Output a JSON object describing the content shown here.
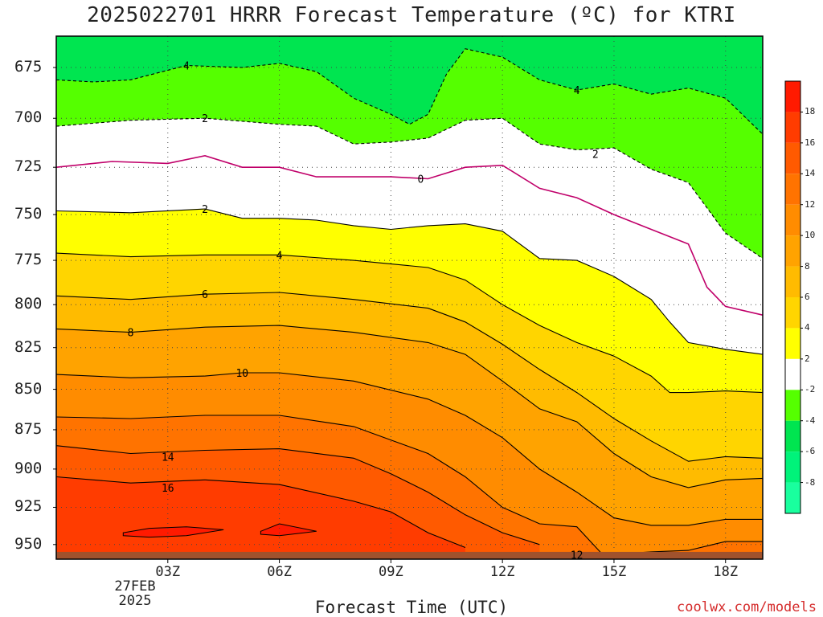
{
  "header": {
    "title": "2025022701 HRRR Forecast Temperature (ºC) for KTRI"
  },
  "footer": {
    "credit": "coolwx.com/models"
  },
  "chart_data": {
    "type": "contour",
    "title": "2025022701 HRRR Forecast Temperature (ºC) for KTRI",
    "xlabel": "Forecast Time (UTC)",
    "ylabel": "",
    "y_scale": "log",
    "y_inverted": true,
    "x_ticks": [
      "03Z",
      "06Z",
      "09Z",
      "12Z",
      "15Z",
      "18Z"
    ],
    "x_tick_hours": [
      3,
      6,
      9,
      12,
      15,
      18
    ],
    "x_date_label": [
      "27FEB",
      "2025"
    ],
    "xlim": [
      0,
      19
    ],
    "y_ticks": [
      675,
      700,
      725,
      750,
      775,
      800,
      825,
      850,
      875,
      900,
      925,
      950
    ],
    "ylim": [
      960,
      660
    ],
    "surface_pressure_hPa": 955,
    "colorbar": {
      "labels": [
        18,
        16,
        14,
        12,
        10,
        8,
        6,
        4,
        2,
        -2,
        -4,
        -6,
        -8
      ],
      "bands": [
        {
          "lo": 18,
          "hi": 20,
          "color": "#ff1a00"
        },
        {
          "lo": 16,
          "hi": 18,
          "color": "#ff3c00"
        },
        {
          "lo": 14,
          "hi": 16,
          "color": "#ff5a00"
        },
        {
          "lo": 12,
          "hi": 14,
          "color": "#ff7300"
        },
        {
          "lo": 10,
          "hi": 12,
          "color": "#ff8c00"
        },
        {
          "lo": 8,
          "hi": 10,
          "color": "#ffa300"
        },
        {
          "lo": 6,
          "hi": 8,
          "color": "#ffbb00"
        },
        {
          "lo": 4,
          "hi": 6,
          "color": "#ffd500"
        },
        {
          "lo": 2,
          "hi": 4,
          "color": "#ffff00"
        },
        {
          "lo": -2,
          "hi": 2,
          "color": "#ffffff"
        },
        {
          "lo": -4,
          "hi": -2,
          "color": "#55ff00"
        },
        {
          "lo": -6,
          "hi": -4,
          "color": "#00e550"
        },
        {
          "lo": -8,
          "hi": -6,
          "color": "#00f37a"
        },
        {
          "lo": -10,
          "hi": -8,
          "color": "#19ff9e"
        }
      ]
    },
    "contour_lines": [
      {
        "level": -4,
        "style": "dashed",
        "label": "4",
        "label_at": [
          [
            3.5,
            674
          ],
          [
            14,
            686
          ]
        ],
        "pts": [
          [
            0,
            681
          ],
          [
            1,
            682
          ],
          [
            2,
            681
          ],
          [
            3.5,
            674
          ],
          [
            5,
            675
          ],
          [
            6,
            673
          ],
          [
            7,
            677
          ],
          [
            8,
            690
          ],
          [
            9,
            698
          ],
          [
            9.5,
            703
          ],
          [
            10,
            698
          ],
          [
            10.5,
            678
          ],
          [
            11,
            666
          ],
          [
            12,
            670
          ],
          [
            13,
            681
          ],
          [
            14,
            686
          ],
          [
            15,
            683
          ],
          [
            16,
            688
          ],
          [
            17,
            685
          ],
          [
            18,
            690
          ],
          [
            19,
            708
          ]
        ]
      },
      {
        "level": -2,
        "style": "dashed",
        "label": "2",
        "label_at": [
          [
            4,
            700
          ],
          [
            14.5,
            718
          ]
        ],
        "pts": [
          [
            0,
            704
          ],
          [
            2,
            701
          ],
          [
            4,
            700
          ],
          [
            6,
            703
          ],
          [
            7,
            704
          ],
          [
            8,
            713
          ],
          [
            9,
            712
          ],
          [
            10,
            710
          ],
          [
            11,
            701
          ],
          [
            12,
            700
          ],
          [
            13,
            713
          ],
          [
            14,
            716
          ],
          [
            15,
            715
          ],
          [
            16,
            726
          ],
          [
            17,
            733
          ],
          [
            18,
            760
          ],
          [
            19,
            774
          ]
        ]
      },
      {
        "level": 0,
        "style": "solid",
        "color": "#c0006a",
        "label": "0",
        "label_at": [
          [
            9.8,
            731
          ]
        ],
        "pts": [
          [
            0,
            725
          ],
          [
            1.5,
            722
          ],
          [
            3,
            723
          ],
          [
            4,
            719
          ],
          [
            5,
            725
          ],
          [
            6,
            725
          ],
          [
            7,
            730
          ],
          [
            8,
            730
          ],
          [
            9,
            730
          ],
          [
            10,
            731
          ],
          [
            11,
            725
          ],
          [
            12,
            724
          ],
          [
            13,
            736
          ],
          [
            14,
            741
          ],
          [
            15,
            750
          ],
          [
            16,
            758
          ],
          [
            17,
            766
          ],
          [
            17.5,
            790
          ],
          [
            18,
            801
          ],
          [
            19,
            806
          ]
        ]
      },
      {
        "level": 2,
        "style": "solid",
        "color": "#000000",
        "label": "2",
        "label_at": [
          [
            4,
            747
          ]
        ],
        "pts": [
          [
            0,
            748
          ],
          [
            2,
            749
          ],
          [
            4,
            747
          ],
          [
            5,
            752
          ],
          [
            6,
            752
          ],
          [
            7,
            753
          ],
          [
            8,
            756
          ],
          [
            9,
            758
          ],
          [
            10,
            756
          ],
          [
            11,
            755
          ],
          [
            12,
            759
          ],
          [
            13,
            774
          ],
          [
            14,
            775
          ],
          [
            15,
            784
          ],
          [
            16,
            797
          ],
          [
            16.5,
            810
          ],
          [
            17,
            822
          ],
          [
            18,
            826
          ],
          [
            19,
            829
          ]
        ]
      },
      {
        "level": 4,
        "style": "solid",
        "color": "#000000",
        "label": "4",
        "label_at": [
          [
            6,
            772
          ]
        ],
        "pts": [
          [
            0,
            771
          ],
          [
            2,
            773
          ],
          [
            4,
            772
          ],
          [
            6,
            772
          ],
          [
            8,
            775
          ],
          [
            10,
            779
          ],
          [
            11,
            786
          ],
          [
            12,
            800
          ],
          [
            13,
            812
          ],
          [
            14,
            822
          ],
          [
            15,
            830
          ],
          [
            16,
            842
          ],
          [
            16.5,
            852
          ],
          [
            17,
            852
          ],
          [
            18,
            851
          ],
          [
            19,
            852
          ]
        ]
      },
      {
        "level": 6,
        "style": "solid",
        "color": "#000000",
        "label": "6",
        "label_at": [
          [
            4,
            794
          ]
        ],
        "pts": [
          [
            0,
            795
          ],
          [
            2,
            797
          ],
          [
            4,
            794
          ],
          [
            6,
            793
          ],
          [
            8,
            797
          ],
          [
            10,
            802
          ],
          [
            11,
            810
          ],
          [
            12,
            823
          ],
          [
            13,
            838
          ],
          [
            14,
            852
          ],
          [
            15,
            868
          ],
          [
            16,
            882
          ],
          [
            17,
            895
          ],
          [
            18,
            892
          ],
          [
            19,
            893
          ]
        ]
      },
      {
        "level": 8,
        "style": "solid",
        "color": "#000000",
        "label": "8",
        "label_at": [
          [
            2,
            816
          ]
        ],
        "pts": [
          [
            0,
            814
          ],
          [
            2,
            816
          ],
          [
            4,
            813
          ],
          [
            6,
            812
          ],
          [
            8,
            816
          ],
          [
            10,
            822
          ],
          [
            11,
            829
          ],
          [
            12,
            845
          ],
          [
            13,
            862
          ],
          [
            14,
            870
          ],
          [
            15,
            890
          ],
          [
            16,
            905
          ],
          [
            17,
            912
          ],
          [
            18,
            907
          ],
          [
            19,
            906
          ]
        ]
      },
      {
        "level": 10,
        "style": "solid",
        "color": "#000000",
        "label": "10",
        "label_at": [
          [
            5,
            840
          ]
        ],
        "pts": [
          [
            0,
            841
          ],
          [
            2,
            843
          ],
          [
            4,
            842
          ],
          [
            5,
            840
          ],
          [
            6,
            840
          ],
          [
            8,
            845
          ],
          [
            10,
            856
          ],
          [
            11,
            866
          ],
          [
            12,
            880
          ],
          [
            13,
            900
          ],
          [
            14,
            915
          ],
          [
            15,
            932
          ],
          [
            16,
            937
          ],
          [
            17,
            937
          ],
          [
            18,
            933
          ],
          [
            19,
            933
          ]
        ]
      },
      {
        "level": 12,
        "style": "solid",
        "color": "#000000",
        "label": "12",
        "label_at": [
          [
            14,
            957
          ]
        ],
        "pts": [
          [
            0,
            867
          ],
          [
            2,
            868
          ],
          [
            4,
            866
          ],
          [
            6,
            866
          ],
          [
            8,
            873
          ],
          [
            10,
            890
          ],
          [
            11,
            905
          ],
          [
            12,
            925
          ],
          [
            13,
            936
          ],
          [
            14,
            938
          ],
          [
            14.7,
            957
          ],
          [
            16,
            955
          ],
          [
            17,
            954
          ],
          [
            18,
            948
          ],
          [
            19,
            948
          ]
        ]
      },
      {
        "level": 14,
        "style": "solid",
        "color": "#000000",
        "label": "14",
        "label_at": [
          [
            3,
            892
          ]
        ],
        "pts": [
          [
            0,
            885
          ],
          [
            2,
            890
          ],
          [
            4,
            888
          ],
          [
            6,
            887
          ],
          [
            8,
            893
          ],
          [
            9,
            903
          ],
          [
            10,
            915
          ],
          [
            11,
            930
          ],
          [
            12,
            942
          ],
          [
            13,
            950
          ]
        ]
      },
      {
        "level": 16,
        "style": "solid",
        "color": "#000000",
        "label": "16",
        "label_at": [
          [
            3,
            912
          ]
        ],
        "pts": [
          [
            0,
            905
          ],
          [
            2,
            909
          ],
          [
            4,
            907
          ],
          [
            6,
            910
          ],
          [
            8,
            921
          ],
          [
            9,
            928
          ],
          [
            10,
            942
          ],
          [
            11,
            952
          ]
        ]
      }
    ],
    "small_contours": [
      {
        "level": 18,
        "pts": [
          [
            1.8,
            942
          ],
          [
            2.5,
            939
          ],
          [
            3.5,
            938
          ],
          [
            4.5,
            940
          ],
          [
            3.5,
            944
          ],
          [
            2.5,
            945
          ],
          [
            1.8,
            944
          ]
        ]
      },
      {
        "level": 18,
        "pts": [
          [
            5.5,
            941
          ],
          [
            6,
            936
          ],
          [
            7,
            941
          ],
          [
            6,
            944
          ],
          [
            5.5,
            943
          ]
        ]
      }
    ]
  }
}
